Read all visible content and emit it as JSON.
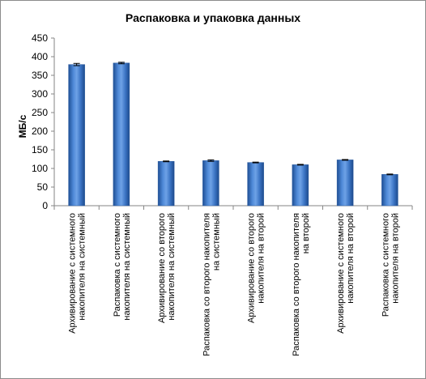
{
  "chart_data": {
    "type": "bar",
    "title": "Распаковка и упаковка данных",
    "xlabel": "",
    "ylabel": "МБ/с",
    "ylim": [
      0,
      450
    ],
    "yticks": [
      0,
      50,
      100,
      150,
      200,
      250,
      300,
      350,
      400,
      450
    ],
    "grid": false,
    "legend": "none",
    "bar_color": "#3b74c4",
    "categories": [
      [
        "Архивирование  с системного",
        "накопителя на системный"
      ],
      [
        "Распаковка с системного",
        "накопителя на системный"
      ],
      [
        "Архивирование  со второго",
        "накопителя на системный"
      ],
      [
        "Распаковка со второго накопителя",
        "на системный"
      ],
      [
        "Архивирование  со второго",
        "накопителя на второй"
      ],
      [
        "Распаковка со второго накопителя",
        "на второй"
      ],
      [
        "Архивирование  с системного",
        "накопителя на второй"
      ],
      [
        "Распаковка с системного",
        "накопителя на второй"
      ]
    ],
    "values": [
      379,
      383,
      119,
      121,
      116,
      110,
      123,
      84
    ],
    "error": [
      3,
      2,
      1,
      2,
      1,
      1,
      1,
      1
    ]
  }
}
